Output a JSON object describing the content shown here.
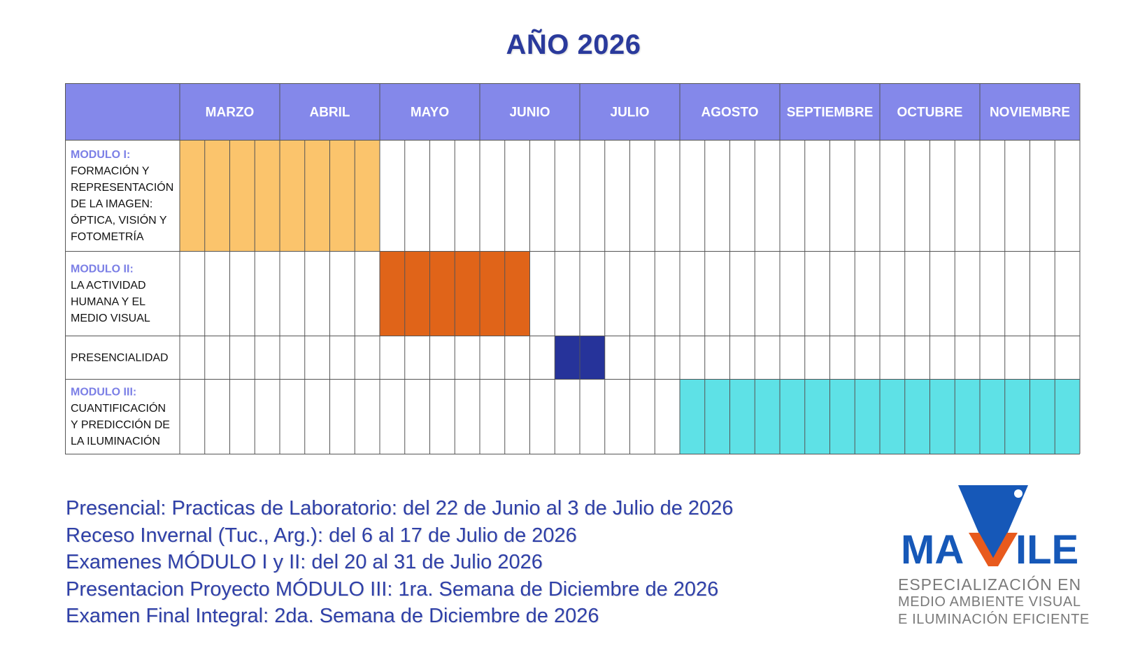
{
  "title": "AÑO 2026",
  "schedule": {
    "months": [
      "MARZO",
      "ABRIL",
      "MAYO",
      "JUNIO",
      "JULIO",
      "AGOSTO",
      "SEPTIEMBRE",
      "OCTUBRE",
      "NOVIEMBRE"
    ],
    "weeks_per_month": 4,
    "rows": [
      {
        "module_label": "MODULO I:",
        "lines": [
          "FORMACIÓN Y",
          "REPRESENTACIÓN",
          "DE LA IMAGEN:",
          "ÓPTICA, VISIÓN Y",
          "FOTOMETRÍA"
        ],
        "start_week": 0,
        "end_week": 8,
        "color": "#fbc46c"
      },
      {
        "module_label": "MODULO II:",
        "lines": [
          "LA ACTIVIDAD",
          "HUMANA Y EL",
          "MEDIO VISUAL"
        ],
        "start_week": 8,
        "end_week": 14,
        "color": "#e06419"
      },
      {
        "module_label": "",
        "lines": [
          "PRESENCIALIDAD"
        ],
        "start_week": 15,
        "end_week": 17,
        "color": "#26339a"
      },
      {
        "module_label": "MODULO III:",
        "lines": [
          "CUANTIFICACIÓN",
          "Y PREDICCIÓN DE",
          "LA ILUMINACIÓN"
        ],
        "start_week": 20,
        "end_week": 36,
        "color": "#5ee1e6"
      }
    ],
    "header_color": "#8488ea",
    "module_label_color": "#7b7fe6"
  },
  "notes": [
    "Presencial: Practicas de Laboratorio: del 22 de Junio al 3 de Julio de 2026",
    "Receso Invernal (Tuc., Arg.): del 6 al 17 de Julio de 2026",
    "Examenes MÓDULO I y II: del 20 al 31 de Julio 2026",
    "Presentacion Proyecto MÓDULO III: 1ra. Semana de Diciembre de 2026",
    "Examen Final Integral: 2da. Semana de Diciembre de 2026"
  ],
  "logo": {
    "name": "MAVILE",
    "tagline": [
      "ESPECIALIZACIÓN EN",
      "MEDIO AMBIENTE VISUAL",
      "E ILUMINACIÓN EFICIENTE"
    ],
    "colors": {
      "blue": "#1658b8",
      "orange": "#e85a1d",
      "gray": "#7a7a7a"
    }
  }
}
